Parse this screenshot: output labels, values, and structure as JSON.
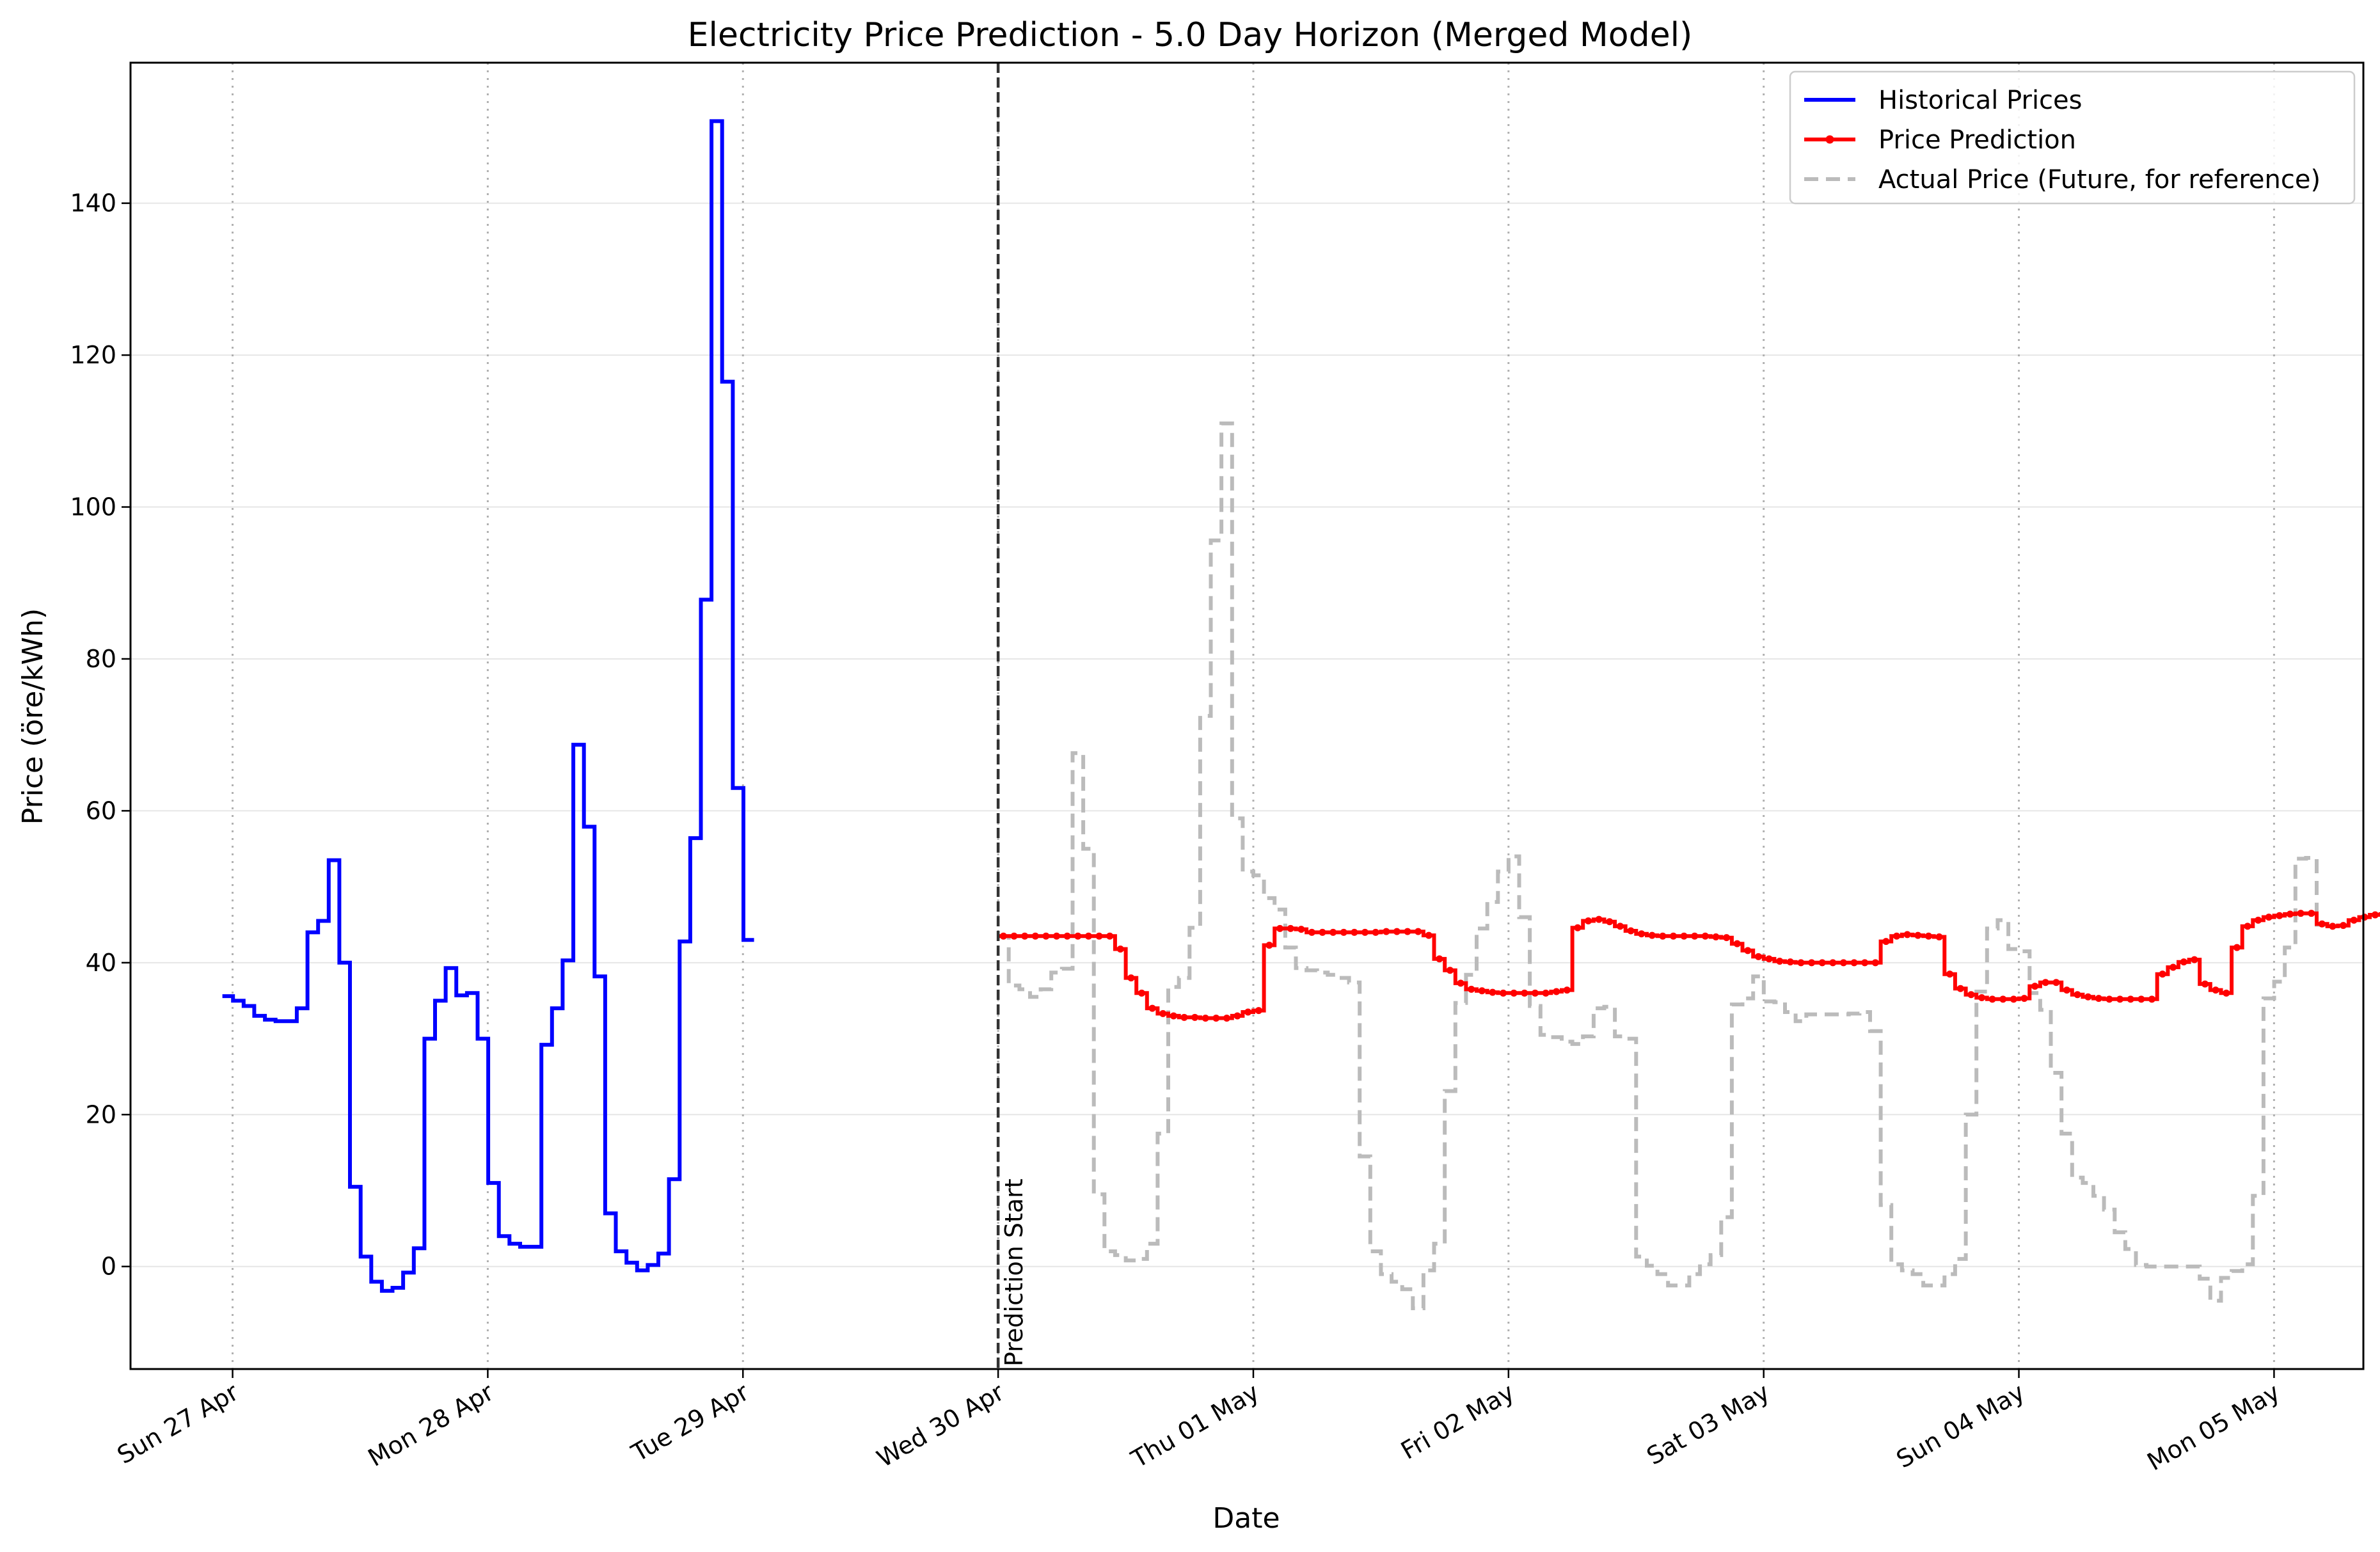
{
  "chart_data": {
    "type": "line",
    "title": "Electricity Price Prediction - 5.0 Day Horizon (Merged Model)",
    "xlabel": "Date",
    "ylabel": "Price (öre/kWh)",
    "x_ticks": [
      "Sun 27 Apr",
      "Mon 28 Apr",
      "Tue 29 Apr",
      "Wed 30 Apr",
      "Thu 01 May",
      "Fri 02 May",
      "Sat 03 May",
      "Sun 04 May",
      "Mon 05 May"
    ],
    "y_ticks": [
      0,
      20,
      40,
      60,
      80,
      100,
      120,
      140
    ],
    "xlim_days": [
      -0.4,
      8.35
    ],
    "ylim": [
      -13.5,
      158.5
    ],
    "grid": "horizontal solid, vertical dotted at day ticks",
    "legend_position": "top-right",
    "annotation": "Prediction Start",
    "prediction_start_day": 3.0,
    "series": [
      {
        "name": "Historical Prices",
        "style": "step",
        "color": "#0000ff",
        "start_day": -0.04,
        "step_days": 0.04167,
        "values": [
          35.6,
          35,
          34.3,
          33,
          32.5,
          32.3,
          32.3,
          34,
          44,
          45.5,
          53.5,
          40,
          10.5,
          1.3,
          -2,
          -3.2,
          -2.8,
          -0.8,
          2.4,
          30,
          35,
          39.3,
          35.7,
          36,
          30,
          11,
          4,
          3,
          2.6,
          2.6,
          29.2,
          34,
          40.3,
          68.7,
          57.9,
          38.2,
          7,
          2,
          0.5,
          -0.5,
          0.2,
          1.7,
          11.5,
          42.8,
          56.4,
          87.8,
          150.8,
          116.5,
          63,
          43
        ]
      },
      {
        "name": "Price Prediction",
        "style": "step",
        "color": "#ff0000",
        "markers": true,
        "start_day": 3.0,
        "step_days": 0.04167,
        "values": [
          43.5,
          43.5,
          43.5,
          43.5,
          43.5,
          43.5,
          43.5,
          43.5,
          43.5,
          43.5,
          43.5,
          41.8,
          38,
          36,
          34,
          33.3,
          33,
          32.8,
          32.8,
          32.7,
          32.7,
          32.7,
          33,
          33.5,
          33.7,
          42.3,
          44.5,
          44.5,
          44.4,
          44,
          44,
          44,
          44,
          44,
          44,
          44,
          44.1,
          44.1,
          44.1,
          44.1,
          43.6,
          40.5,
          39,
          37.3,
          36.5,
          36.3,
          36.1,
          36,
          36,
          36,
          36,
          36,
          36.2,
          36.4,
          44.6,
          45.5,
          45.7,
          45.4,
          44.8,
          44.2,
          43.8,
          43.6,
          43.5,
          43.5,
          43.5,
          43.5,
          43.5,
          43.4,
          43.3,
          42.5,
          41.6,
          40.8,
          40.5,
          40.2,
          40.1,
          40,
          40,
          40,
          40,
          40,
          40,
          40,
          40,
          42.8,
          43.5,
          43.7,
          43.6,
          43.5,
          43.4,
          38.5,
          36.6,
          35.8,
          35.4,
          35.2,
          35.2,
          35.2,
          35.3,
          36.9,
          37.4,
          37.4,
          36.4,
          35.8,
          35.5,
          35.3,
          35.2,
          35.2,
          35.2,
          35.2,
          35.2,
          38.5,
          39.4,
          40.1,
          40.4,
          37.2,
          36.4,
          36,
          42,
          44.8,
          45.6,
          46,
          46.2,
          46.4,
          46.5,
          46.5,
          45.1,
          44.8,
          44.9,
          45.6,
          46,
          46.3,
          46.4,
          46.4,
          46.4,
          46.4,
          46.5,
          46.6,
          46.8,
          47,
          47.1,
          47.1,
          46.8,
          46.5,
          46.4
        ]
      },
      {
        "name": "Actual Price (Future, for reference)",
        "style": "step-dashed",
        "color": "#bbbbbb",
        "start_day": 3.0,
        "step_days": 0.04167,
        "values": [
          43.5,
          37,
          36.5,
          35.5,
          36.5,
          38.7,
          39.2,
          67.6,
          55,
          9.5,
          2,
          1.5,
          0.8,
          1,
          3,
          17.5,
          36.8,
          38,
          44.6,
          72.5,
          95.6,
          111,
          59,
          52,
          51.5,
          48.5,
          47,
          42,
          39.3,
          39,
          38.7,
          38.4,
          38,
          37.4,
          14.5,
          2,
          -1,
          -2,
          -3,
          -5.5,
          -0.5,
          3,
          23.1,
          34.7,
          38.4,
          44.5,
          48,
          52,
          54,
          46,
          34.3,
          30.5,
          30.2,
          29.6,
          29.3,
          30.3,
          34,
          34.2,
          30.3,
          30,
          1.3,
          0.1,
          -1,
          -2.5,
          -2.5,
          -1,
          0.3,
          1.5,
          6.5,
          34.5,
          35.3,
          38.2,
          34.9,
          34.8,
          33.5,
          32.3,
          33.2,
          33.2,
          33.2,
          33.2,
          33.3,
          33.5,
          31,
          8.1,
          0.3,
          -0.5,
          -1,
          -2.5,
          -2.5,
          -1,
          1,
          20,
          36.2,
          44.5,
          45.6,
          41.8,
          41.5,
          36,
          33.8,
          25.5,
          17.5,
          11.7,
          11,
          9.3,
          7.5,
          4.5,
          2.3,
          0.2,
          0,
          0,
          0,
          0,
          0,
          -1.6,
          -4.5,
          -1.5,
          -0.6,
          0.3,
          9.3,
          35.3,
          37.5,
          42,
          53.7,
          53.8,
          45
        ]
      }
    ]
  }
}
